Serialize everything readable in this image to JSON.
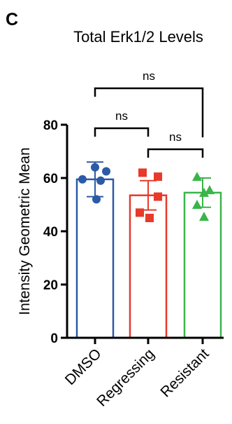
{
  "panel_label": "C",
  "chart_data": {
    "type": "bar",
    "title": "Total Erk1/2 Levels",
    "ylabel": "Intensity Geometric Mean",
    "xlabel": "",
    "ylim": [
      0,
      80
    ],
    "yticks": [
      0,
      20,
      40,
      60,
      80
    ],
    "grid": false,
    "categories": [
      "DMSO",
      "Regressing",
      "Resistant"
    ],
    "bars": [
      {
        "category": "DMSO",
        "mean": 59.5,
        "error": 6.5,
        "color": "#2b5aa6",
        "marker": "circle",
        "points": [
          64,
          62.5,
          59.5,
          59,
          52
        ]
      },
      {
        "category": "Regressing",
        "mean": 53.5,
        "error": 5.5,
        "color": "#e8392a",
        "marker": "square",
        "points": [
          62,
          60.5,
          53,
          47,
          45
        ]
      },
      {
        "category": "Resistant",
        "mean": 54.5,
        "error": 5.5,
        "color": "#3ab54a",
        "marker": "triangle",
        "points": [
          60.5,
          55.5,
          54.5,
          50,
          45.5
        ]
      }
    ],
    "comparisons": [
      {
        "from": "DMSO",
        "to": "Regressing",
        "label": "ns"
      },
      {
        "from": "Regressing",
        "to": "Resistant",
        "label": "ns"
      },
      {
        "from": "DMSO",
        "to": "Resistant",
        "label": "ns"
      }
    ]
  }
}
